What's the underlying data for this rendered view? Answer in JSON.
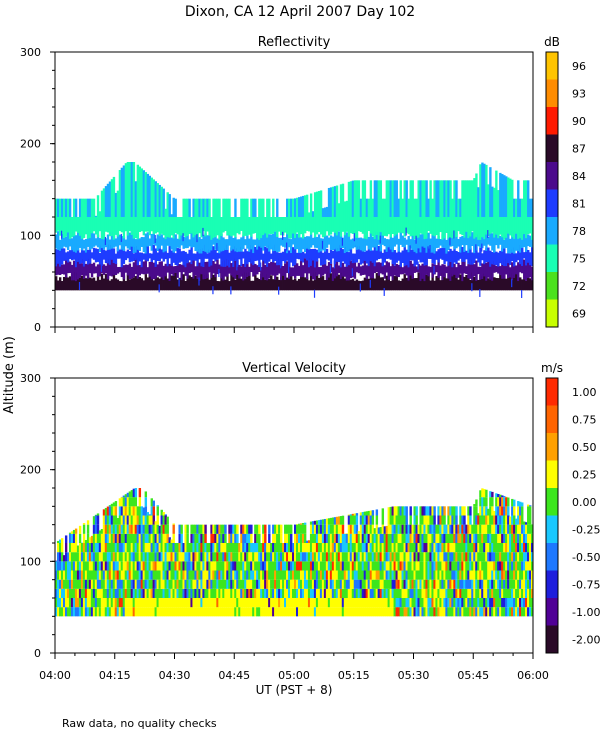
{
  "page_title": "Dixon, CA 12 April 2007  Day 102",
  "shared_ylabel": "Altitude (m)",
  "xlabel": "UT  (PST + 8)",
  "x_ticks": [
    "04:00",
    "04:15",
    "04:30",
    "04:45",
    "05:00",
    "05:15",
    "05:30",
    "05:45",
    "06:00"
  ],
  "footnote": "Raw data, no quality checks",
  "chart_data": [
    {
      "type": "heatmap",
      "title": "Reflectivity",
      "ylim": [
        0,
        300
      ],
      "y_ticks": [
        "0",
        "100",
        "200",
        "300"
      ],
      "x_range": [
        "04:00",
        "06:00"
      ],
      "colorbar": {
        "unit": "dB",
        "labels": [
          "96",
          "93",
          "90",
          "87",
          "84",
          "81",
          "78",
          "75",
          "72",
          "69"
        ],
        "colors": [
          "#ffc400",
          "#ff8c00",
          "#ff1a00",
          "#2a0a28",
          "#4b0a8c",
          "#1e3cff",
          "#19aaff",
          "#19ffb4",
          "#4be11e",
          "#c8ff00"
        ]
      },
      "echo_base_m": 40,
      "layers": [
        {
          "from_m": 40,
          "to_m": 55,
          "color": "#2a0a28",
          "dB": 87
        },
        {
          "from_m": 55,
          "to_m": 70,
          "color": "#4b0a8c",
          "dB": 84
        },
        {
          "from_m": 70,
          "to_m": 85,
          "color": "#1e3cff",
          "dB": 81
        },
        {
          "from_m": 85,
          "to_m": 100,
          "color": "#19aaff",
          "dB": 78
        },
        {
          "from_m": 100,
          "to_m": 120,
          "color": "#19ffb4",
          "dB": 75
        }
      ],
      "top_series": {
        "name": "",
        "x": [
          "04:00",
          "04:10",
          "04:18",
          "04:20",
          "04:30",
          "04:45",
          "05:00",
          "05:15",
          "05:30",
          "05:45",
          "05:47",
          "05:55",
          "06:00"
        ],
        "y": [
          140,
          140,
          180,
          180,
          140,
          140,
          140,
          160,
          160,
          160,
          180,
          160,
          160
        ]
      }
    },
    {
      "type": "heatmap",
      "title": "Vertical Velocity",
      "ylim": [
        0,
        300
      ],
      "y_ticks": [
        "0",
        "100",
        "200",
        "300"
      ],
      "x_range": [
        "04:00",
        "06:00"
      ],
      "colorbar": {
        "unit": "m/s",
        "labels": [
          "1.00",
          "0.75",
          "0.50",
          "0.25",
          "0.00",
          "-0.25",
          "-0.50",
          "-0.75",
          "-1.00",
          "-2.00"
        ],
        "colors": [
          "#ff2a00",
          "#ff6400",
          "#ffa000",
          "#ffff00",
          "#3ce61e",
          "#19c8ff",
          "#1e78ff",
          "#1e1edc",
          "#500096",
          "#2a0a28"
        ]
      },
      "echo_base_m": 40,
      "base_layer": {
        "from_m": 40,
        "to_m": 60,
        "color": "#ffff00",
        "m/s": 0.25,
        "span": [
          "04:18",
          "05:25"
        ]
      },
      "top_series": {
        "name": "",
        "x": [
          "04:00",
          "04:20",
          "04:22",
          "04:30",
          "05:00",
          "05:25",
          "05:30",
          "05:45",
          "05:47",
          "06:00"
        ],
        "y": [
          120,
          180,
          180,
          140,
          140,
          160,
          160,
          160,
          180,
          160
        ]
      }
    }
  ]
}
